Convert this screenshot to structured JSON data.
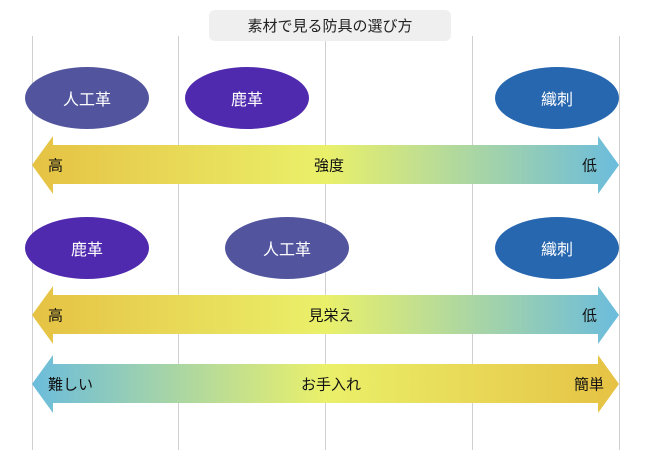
{
  "title": "素材で見る防具の選び方",
  "colors": {
    "gold": "#E6C244",
    "yellow": "#EAF06A",
    "blue": "#6BBCDC",
    "synthetic": "#52559E",
    "deer": "#4F2AAE",
    "woven": "#2767B0"
  },
  "rows": [
    {
      "ellipses": [
        {
          "label": "人工革",
          "color": "#52559E"
        },
        {
          "label": "鹿革",
          "color": "#4F2AAE"
        },
        {
          "label": "織刺",
          "color": "#2767B0"
        }
      ],
      "arrow": {
        "left": "高",
        "center": "強度",
        "right": "低",
        "gradient": "gold-to-blue"
      }
    },
    {
      "ellipses": [
        {
          "label": "鹿革",
          "color": "#4F2AAE"
        },
        {
          "label": "人工革",
          "color": "#52559E"
        },
        {
          "label": "織刺",
          "color": "#2767B0"
        }
      ],
      "arrow": {
        "left": "高",
        "center": "見栄え",
        "right": "低",
        "gradient": "gold-to-blue"
      }
    },
    {
      "arrow": {
        "left": "難しい",
        "center": "お手入れ",
        "right": "簡単",
        "gradient": "blue-to-gold"
      }
    }
  ]
}
